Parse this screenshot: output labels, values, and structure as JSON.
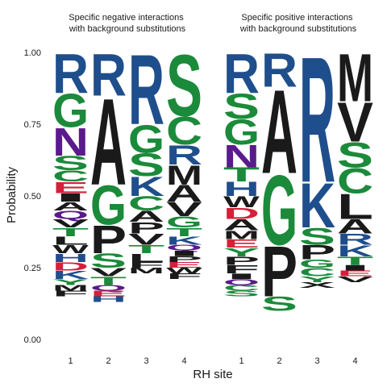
{
  "colors": {
    "A": "#1a1a1a",
    "F": "#1a1a1a",
    "L": "#1a1a1a",
    "I": "#1a1a1a",
    "M": "#1a1a1a",
    "V": "#1a1a1a",
    "W": "#1a1a1a",
    "P": "#1a1a1a",
    "S": "#1b8a3a",
    "G": "#1b8a3a",
    "T": "#1b8a3a",
    "Y": "#1b8a3a",
    "C": "#1b8a3a",
    "Q": "#5a1a8c",
    "N": "#5a1a8c",
    "R": "#1f4e8c",
    "K": "#1f4e8c",
    "H": "#1f4e8c",
    "D": "#d61f3a",
    "E": "#d61f3a"
  },
  "chart_data": [
    {
      "type": "sequence-logo",
      "title": "Specific negative interactions\nwith background substitutions",
      "xlabel": "RH site",
      "ylabel": "Probability",
      "ylim": [
        0,
        1
      ],
      "yticks": [
        "0.00",
        "0.25",
        "0.50",
        "0.75",
        "1.00"
      ],
      "categories": [
        "1",
        "2",
        "3",
        "4"
      ],
      "positions": [
        [
          {
            "letter": "R",
            "value": 0.14
          },
          {
            "letter": "G",
            "value": 0.12
          },
          {
            "letter": "N",
            "value": 0.1
          },
          {
            "letter": "S",
            "value": 0.05
          },
          {
            "letter": "C",
            "value": 0.04
          },
          {
            "letter": "E",
            "value": 0.04
          },
          {
            "letter": "I",
            "value": 0.03
          },
          {
            "letter": "A",
            "value": 0.03
          },
          {
            "letter": "Q",
            "value": 0.03
          },
          {
            "letter": "V",
            "value": 0.03
          },
          {
            "letter": "T",
            "value": 0.03
          },
          {
            "letter": "L",
            "value": 0.03
          },
          {
            "letter": "W",
            "value": 0.03
          },
          {
            "letter": "H",
            "value": 0.03
          },
          {
            "letter": "D",
            "value": 0.03
          },
          {
            "letter": "K",
            "value": 0.03
          },
          {
            "letter": "Y",
            "value": 0.02
          },
          {
            "letter": "M",
            "value": 0.02
          },
          {
            "letter": "F",
            "value": 0.02
          }
        ],
        [
          {
            "letter": "R",
            "value": 0.15
          },
          {
            "letter": "A",
            "value": 0.31
          },
          {
            "letter": "G",
            "value": 0.14
          },
          {
            "letter": "P",
            "value": 0.1
          },
          {
            "letter": "S",
            "value": 0.05
          },
          {
            "letter": "V",
            "value": 0.03
          },
          {
            "letter": "T",
            "value": 0.03
          },
          {
            "letter": "Q",
            "value": 0.02
          },
          {
            "letter": "E",
            "value": 0.02
          },
          {
            "letter": "H",
            "value": 0.02
          }
        ],
        [
          {
            "letter": "R",
            "value": 0.25
          },
          {
            "letter": "G",
            "value": 0.1
          },
          {
            "letter": "S",
            "value": 0.08
          },
          {
            "letter": "K",
            "value": 0.07
          },
          {
            "letter": "C",
            "value": 0.05
          },
          {
            "letter": "A",
            "value": 0.04
          },
          {
            "letter": "P",
            "value": 0.04
          },
          {
            "letter": "V",
            "value": 0.04
          },
          {
            "letter": "T",
            "value": 0.03
          },
          {
            "letter": "L",
            "value": 0.03
          },
          {
            "letter": "F",
            "value": 0.02
          },
          {
            "letter": "M",
            "value": 0.02
          }
        ],
        [
          {
            "letter": "S",
            "value": 0.22
          },
          {
            "letter": "C",
            "value": 0.1
          },
          {
            "letter": "R",
            "value": 0.07
          },
          {
            "letter": "M",
            "value": 0.07
          },
          {
            "letter": "A",
            "value": 0.06
          },
          {
            "letter": "V",
            "value": 0.05
          },
          {
            "letter": "G",
            "value": 0.04
          },
          {
            "letter": "T",
            "value": 0.03
          },
          {
            "letter": "K",
            "value": 0.03
          },
          {
            "letter": "Q",
            "value": 0.02
          },
          {
            "letter": "I",
            "value": 0.02
          },
          {
            "letter": "P",
            "value": 0.02
          },
          {
            "letter": "E",
            "value": 0.02
          },
          {
            "letter": "W",
            "value": 0.02
          },
          {
            "letter": "F",
            "value": 0.02
          }
        ]
      ]
    },
    {
      "type": "sequence-logo",
      "title": "Specific positive interactions\nwith background substitutions",
      "xlabel": "RH site",
      "ylabel": "Probability",
      "ylim": [
        0,
        1
      ],
      "yticks": [
        "0.00",
        "0.25",
        "0.50",
        "0.75",
        "1.00"
      ],
      "categories": [
        "1",
        "2",
        "3",
        "4"
      ],
      "positions": [
        [
          {
            "letter": "R",
            "value": 0.14
          },
          {
            "letter": "S",
            "value": 0.09
          },
          {
            "letter": "G",
            "value": 0.09
          },
          {
            "letter": "N",
            "value": 0.08
          },
          {
            "letter": "T",
            "value": 0.05
          },
          {
            "letter": "H",
            "value": 0.05
          },
          {
            "letter": "W",
            "value": 0.04
          },
          {
            "letter": "D",
            "value": 0.04
          },
          {
            "letter": "A",
            "value": 0.04
          },
          {
            "letter": "M",
            "value": 0.03
          },
          {
            "letter": "E",
            "value": 0.03
          },
          {
            "letter": "Y",
            "value": 0.03
          },
          {
            "letter": "P",
            "value": 0.03
          },
          {
            "letter": "F",
            "value": 0.03
          },
          {
            "letter": "I",
            "value": 0.02
          },
          {
            "letter": "Q",
            "value": 0.02
          },
          {
            "letter": "C",
            "value": 0.02
          },
          {
            "letter": "S",
            "value": 0.02
          }
        ],
        [
          {
            "letter": "R",
            "value": 0.12
          },
          {
            "letter": "A",
            "value": 0.3
          },
          {
            "letter": "G",
            "value": 0.25
          },
          {
            "letter": "P",
            "value": 0.18
          },
          {
            "letter": "S",
            "value": 0.05
          }
        ],
        [
          {
            "letter": "R",
            "value": 0.45
          },
          {
            "letter": "K",
            "value": 0.16
          },
          {
            "letter": "S",
            "value": 0.06
          },
          {
            "letter": "P",
            "value": 0.05
          },
          {
            "letter": "G",
            "value": 0.03
          },
          {
            "letter": "C",
            "value": 0.03
          },
          {
            "letter": "Y",
            "value": 0.02
          },
          {
            "letter": "X",
            "value": 0.02
          }
        ],
        [
          {
            "letter": "M",
            "value": 0.17
          },
          {
            "letter": "V",
            "value": 0.14
          },
          {
            "letter": "S",
            "value": 0.09
          },
          {
            "letter": "C",
            "value": 0.09
          },
          {
            "letter": "L",
            "value": 0.09
          },
          {
            "letter": "A",
            "value": 0.05
          },
          {
            "letter": "R",
            "value": 0.04
          },
          {
            "letter": "K",
            "value": 0.04
          },
          {
            "letter": "T",
            "value": 0.03
          },
          {
            "letter": "I",
            "value": 0.02
          },
          {
            "letter": "E",
            "value": 0.02
          },
          {
            "letter": "V",
            "value": 0.02
          }
        ]
      ]
    }
  ]
}
